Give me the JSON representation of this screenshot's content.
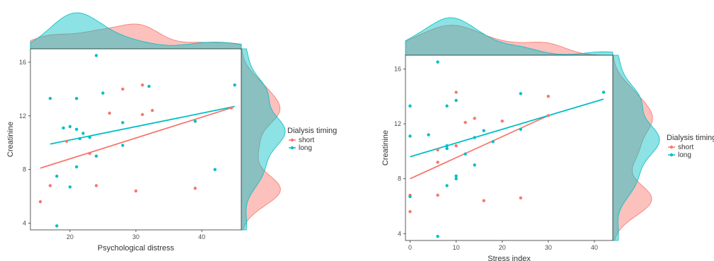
{
  "chart_data": [
    {
      "type": "scatter",
      "title": "",
      "xlabel": "Psychological distress",
      "ylabel": "Creatinine",
      "xlim": [
        14,
        46
      ],
      "ylim": [
        3.5,
        17
      ],
      "x_ticks": [
        20,
        30,
        40
      ],
      "y_ticks": [
        4,
        8,
        12,
        16
      ],
      "grid": false,
      "legend": {
        "title": "Dialysis timing",
        "placement": "right",
        "entries": [
          {
            "label": "short",
            "color": "#F8766D"
          },
          {
            "label": "long",
            "color": "#00BFC4"
          }
        ]
      },
      "marginal_density": true,
      "series": [
        {
          "name": "short",
          "color": "#F8766D",
          "points": [
            [
              15.5,
              5.6
            ],
            [
              17,
              6.8
            ],
            [
              19.5,
              10.1
            ],
            [
              23,
              9.2
            ],
            [
              24,
              6.8
            ],
            [
              26,
              12.2
            ],
            [
              28,
              14.0
            ],
            [
              30,
              6.4
            ],
            [
              31,
              14.3
            ],
            [
              31,
              12.1
            ],
            [
              32.5,
              12.4
            ],
            [
              39,
              6.6
            ],
            [
              44.5,
              12.6
            ]
          ],
          "trend": [
            [
              15.5,
              8.1
            ],
            [
              44.5,
              12.6
            ]
          ]
        },
        {
          "name": "long",
          "color": "#00BFC4",
          "points": [
            [
              17,
              13.3
            ],
            [
              18,
              7.5
            ],
            [
              18,
              3.8
            ],
            [
              19,
              11.1
            ],
            [
              20,
              11.2
            ],
            [
              20,
              6.7
            ],
            [
              21,
              13.3
            ],
            [
              21,
              11.0
            ],
            [
              21,
              8.2
            ],
            [
              21.5,
              10.3
            ],
            [
              22,
              10.7
            ],
            [
              23,
              10.4
            ],
            [
              24,
              16.5
            ],
            [
              24,
              9.0
            ],
            [
              25,
              13.7
            ],
            [
              28,
              11.5
            ],
            [
              28,
              9.8
            ],
            [
              32,
              14.2
            ],
            [
              39,
              11.6
            ],
            [
              42,
              8.0
            ],
            [
              45,
              14.3
            ]
          ],
          "trend": [
            [
              17,
              9.9
            ],
            [
              45,
              12.7
            ]
          ]
        }
      ]
    },
    {
      "type": "scatter",
      "title": "",
      "xlabel": "Stress index",
      "ylabel": "Creatinine",
      "xlim": [
        -1,
        44
      ],
      "ylim": [
        3.5,
        17
      ],
      "x_ticks": [
        0,
        10,
        20,
        30,
        40
      ],
      "y_ticks": [
        4,
        8,
        12,
        16
      ],
      "grid": false,
      "legend": {
        "title": "Dialysis timing",
        "placement": "right",
        "entries": [
          {
            "label": "short",
            "color": "#F8766D"
          },
          {
            "label": "long",
            "color": "#00BFC4"
          }
        ]
      },
      "marginal_density": true,
      "series": [
        {
          "name": "short",
          "color": "#F8766D",
          "points": [
            [
              0,
              6.8
            ],
            [
              0,
              5.6
            ],
            [
              6,
              10.1
            ],
            [
              6,
              9.2
            ],
            [
              6,
              6.8
            ],
            [
              10,
              14.3
            ],
            [
              10,
              10.4
            ],
            [
              12,
              12.1
            ],
            [
              14,
              12.4
            ],
            [
              16,
              6.4
            ],
            [
              20,
              12.2
            ],
            [
              24,
              6.6
            ],
            [
              30,
              14.0
            ],
            [
              30,
              12.6
            ]
          ],
          "trend": [
            [
              0,
              8.0
            ],
            [
              30,
              12.6
            ]
          ]
        },
        {
          "name": "long",
          "color": "#00BFC4",
          "points": [
            [
              0,
              13.3
            ],
            [
              0,
              11.1
            ],
            [
              0,
              6.7
            ],
            [
              4,
              11.2
            ],
            [
              6,
              16.5
            ],
            [
              6,
              3.8
            ],
            [
              8,
              13.3
            ],
            [
              8,
              10.4
            ],
            [
              8,
              10.2
            ],
            [
              8,
              7.5
            ],
            [
              10,
              13.7
            ],
            [
              10,
              8.2
            ],
            [
              10,
              8.0
            ],
            [
              12,
              9.8
            ],
            [
              14,
              11.0
            ],
            [
              14,
              9.0
            ],
            [
              16,
              11.5
            ],
            [
              18,
              10.7
            ],
            [
              24,
              14.2
            ],
            [
              24,
              11.6
            ],
            [
              42,
              14.3
            ]
          ],
          "trend": [
            [
              0,
              9.6
            ],
            [
              42,
              13.8
            ]
          ]
        }
      ]
    }
  ]
}
